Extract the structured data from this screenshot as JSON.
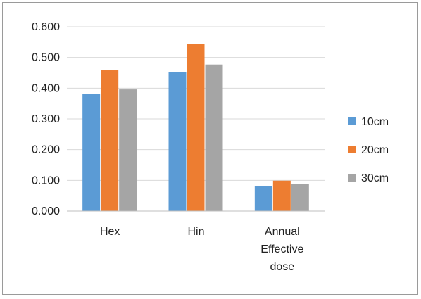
{
  "chart_data": {
    "type": "bar",
    "categories": [
      [
        "Hex"
      ],
      [
        "Hin"
      ],
      [
        "Annual",
        "Effective",
        "dose"
      ]
    ],
    "series": [
      {
        "name": "10cm",
        "color": "#5B9BD5",
        "values": [
          0.381,
          0.453,
          0.082
        ]
      },
      {
        "name": "20cm",
        "color": "#ED7D31",
        "values": [
          0.458,
          0.545,
          0.099
        ]
      },
      {
        "name": "30cm",
        "color": "#A5A5A5",
        "values": [
          0.396,
          0.477,
          0.088
        ]
      }
    ],
    "title": "",
    "xlabel": "",
    "ylabel": "",
    "ylim": [
      0,
      0.6
    ],
    "yticks": [
      "0.000",
      "0.100",
      "0.200",
      "0.300",
      "0.400",
      "0.500",
      "0.600"
    ],
    "grid": true,
    "legend_position": "right"
  }
}
